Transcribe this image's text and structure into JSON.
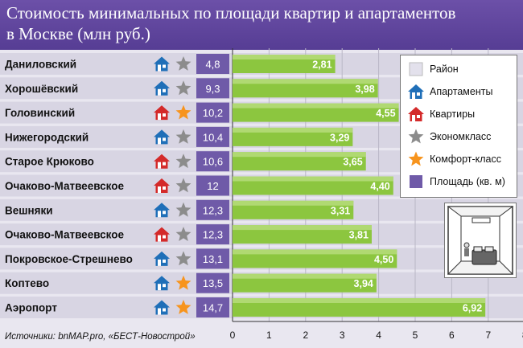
{
  "title_line1": "Стоимость минимальных по площади квартир и апартаментов",
  "title_line2": "в Москве (млн руб.)",
  "source": "Источники: bnMAP.pro, «БЕСТ-Новострой»",
  "legend": {
    "items": [
      {
        "key": "district",
        "label": "Район",
        "symbol": "swatch-light"
      },
      {
        "key": "apartments",
        "label": "Апартаменты",
        "symbol": "house-blue"
      },
      {
        "key": "flats",
        "label": "Квартиры",
        "symbol": "house-red"
      },
      {
        "key": "economy",
        "label": "Экономкласс",
        "symbol": "star-gray"
      },
      {
        "key": "comfort",
        "label": "Комфорт-класс",
        "symbol": "star-orange"
      },
      {
        "key": "area",
        "label": "Площадь (кв. м)",
        "symbol": "swatch-purple"
      }
    ]
  },
  "colors": {
    "title_bg": "#5a3f98",
    "house_blue": "#1f6fb8",
    "house_red": "#d42a2a",
    "star_gray": "#8c8c8c",
    "star_orange": "#f7941d",
    "area_box": "#6f5aa8",
    "bar_green": "#8cc63f",
    "row_band": "#d8d5e3"
  },
  "chart_data": {
    "type": "bar",
    "orientation": "horizontal",
    "title": "Стоимость минимальных по площади квартир и апартаментов в Москве (млн руб.)",
    "xlabel": "",
    "ylabel": "",
    "xlim": [
      0,
      8
    ],
    "x_ticks": [
      0,
      1,
      2,
      3,
      4,
      5,
      6,
      7,
      8
    ],
    "grid": true,
    "categories": [
      "Даниловский",
      "Хорошёвский",
      "Головинский",
      "Нижегородский",
      "Старое Крюково",
      "Очаково-Матвеевское",
      "Вешняки",
      "Очаково-Матвеевское",
      "Покровское-Стрешнево",
      "Коптево",
      "Аэропорт"
    ],
    "values": [
      2.81,
      3.98,
      4.55,
      3.29,
      3.65,
      4.4,
      3.31,
      3.81,
      4.5,
      3.94,
      6.92
    ],
    "value_labels": [
      "2,81",
      "3,98",
      "4,55",
      "3,29",
      "3,65",
      "4,40",
      "3,31",
      "3,81",
      "4,50",
      "3,94",
      "6,92"
    ],
    "area_labels": [
      "4,8",
      "9,3",
      "10,2",
      "10,4",
      "10,6",
      "12",
      "12,3",
      "12,3",
      "13,1",
      "13,5",
      "14,7"
    ],
    "housing_type": [
      "apartments",
      "apartments",
      "flats",
      "apartments",
      "flats",
      "flats",
      "apartments",
      "flats",
      "apartments",
      "apartments",
      "apartments"
    ],
    "housing_class": [
      "economy",
      "economy",
      "comfort",
      "economy",
      "economy",
      "economy",
      "economy",
      "economy",
      "economy",
      "comfort",
      "comfort"
    ]
  }
}
